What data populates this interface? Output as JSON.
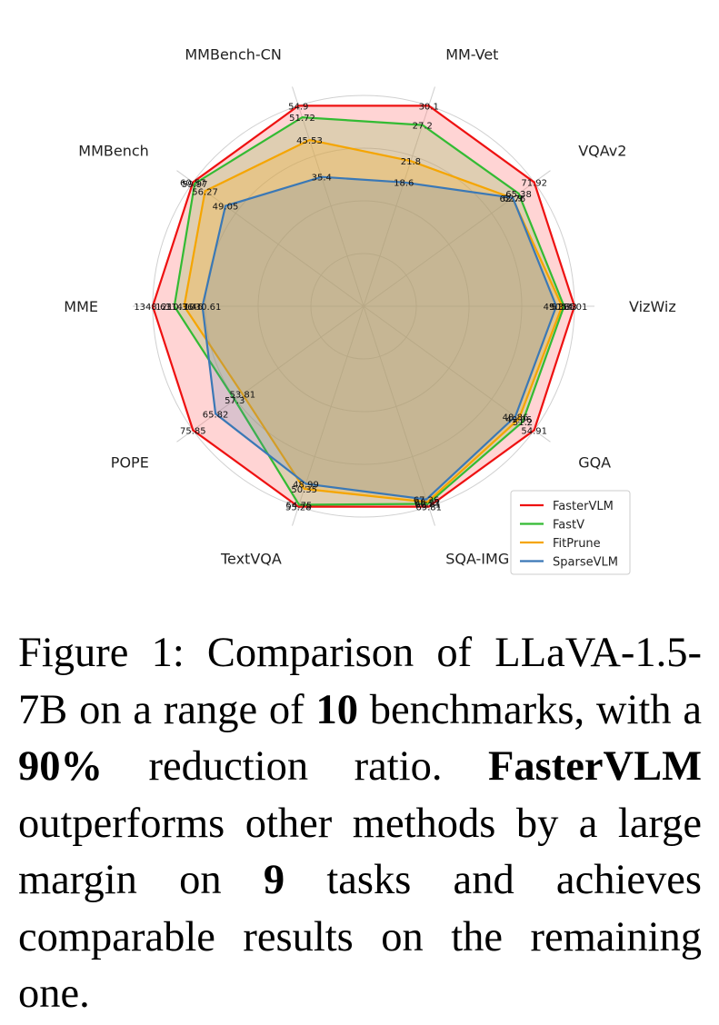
{
  "chart_data": {
    "type": "radar",
    "axes": [
      "VizWiz",
      "VQAv2",
      "MM-Vet",
      "MMBench-CN",
      "MMBench",
      "MME",
      "POPE",
      "TextVQA",
      "SQA-IMG",
      "GQA"
    ],
    "series": [
      {
        "name": "FasterVLM",
        "color": "#ee1111",
        "fill": "rgba(255,120,120,0.32)",
        "values": [
          54.01,
          71.92,
          30.1,
          54.9,
          60.57,
          1348.63,
          75.85,
          55.28,
          69.81,
          54.91
        ],
        "labels": [
          "54.01",
          "71.92",
          "30.1",
          "54.9",
          "60.57",
          "1348.63",
          "75.85",
          "55.28",
          "69.81",
          "54.91"
        ]
      },
      {
        "name": "FastV",
        "color": "#33bb33",
        "fill": "rgba(140,190,90,0.28)",
        "values": [
          51.33,
          65.38,
          27.2,
          51.72,
          59.97,
          1210.36,
          57.3,
          54.75,
          68.81,
          51.2
        ],
        "labels": [
          "51.33",
          "65.38",
          "27.2",
          "51.72",
          "59.97",
          "1210.36",
          "57.3",
          "54.75",
          "68.81",
          "51.2"
        ]
      },
      {
        "name": "FitPrune",
        "color": "#f5a500",
        "fill": "rgba(245,175,40,0.28)",
        "values": [
          50.85,
          62.76,
          21.8,
          45.53,
          56.27,
          1147.46,
          53.81,
          50.35,
          68.22,
          49.96
        ],
        "labels": [
          "50.85",
          "62.76",
          "21.8",
          "45.53",
          "56.27",
          "1147.46",
          "53.81",
          "50.35",
          "68.22",
          "49.96"
        ]
      },
      {
        "name": "SparseVLM",
        "color": "#3a78b6",
        "fill": "rgba(90,130,180,0.22)",
        "values": [
          49.36,
          62.9,
          18.6,
          35.4,
          49.05,
          1030.61,
          65.82,
          48.99,
          67.26,
          48.86
        ],
        "labels": [
          "49.36",
          "62.9",
          "18.6",
          "35.4",
          "49.05",
          "1030.61",
          "65.82",
          "48.99",
          "67.26",
          "48.86"
        ]
      }
    ],
    "grid_rings": 4,
    "legend": "bottom-right"
  },
  "caption": {
    "prefix": "Figure 1: Comparison of LLaVA-1.5-7B on a range of ",
    "num_tasks": "10",
    "mid1": " bench­marks, with a ",
    "ratio": "90%",
    "mid2": " reduction ra­tio. ",
    "method": "FasterVLM",
    "mid3": " outperforms other methods by a large margin on ",
    "num_win": "9",
    "suffix": " tasks and achieves compara­ble results on the remaining one."
  }
}
